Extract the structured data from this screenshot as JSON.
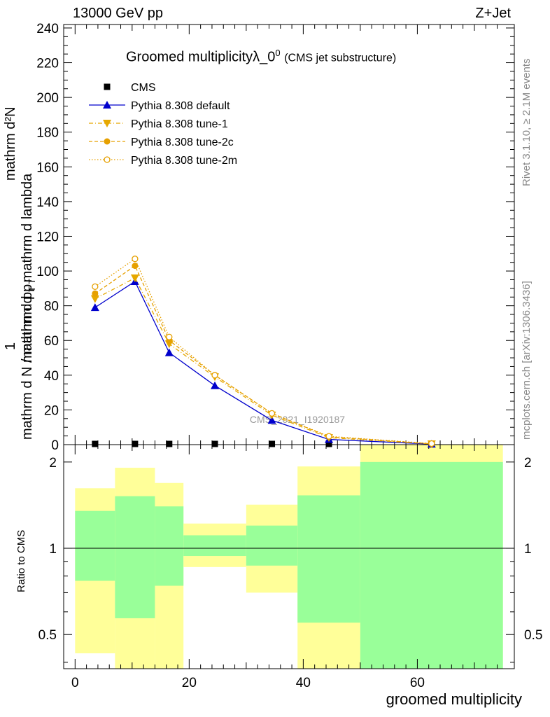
{
  "header": {
    "left": "13000 GeV pp",
    "right": "Z+Jet"
  },
  "side_labels": {
    "rivet": "Rivet 3.1.10, ≥ 2.1M events",
    "mcplots": "mcplots.cern.ch [arXiv:1306.3436]"
  },
  "chart_data": [
    {
      "type": "line",
      "title": "Groomed multiplicityλ_0",
      "title_sup": "0",
      "subtitle": "(CMS jet substructure)",
      "ylabel_top": "mathrm d²N",
      "ylabel_mid": "mathrm d p",
      "ylabel_sub": "T",
      "ylabel_tail": "mathrm d lambda",
      "ylabel_one": "1",
      "ylabel_bottom": "mathrm d N / mathrm d p",
      "ylabel_bottom_sub": "T",
      "ylim": [
        0,
        242
      ],
      "xlim": [
        -2,
        77
      ],
      "y_ticks": [
        0,
        20,
        40,
        60,
        80,
        100,
        120,
        140,
        160,
        180,
        200,
        220,
        240
      ],
      "watermark": "CMS_2021_I1920187",
      "legend": {
        "placement": "top-left"
      },
      "series": [
        {
          "name": "CMS",
          "color": "#000000",
          "marker": "square",
          "style": "none",
          "x": [
            3.5,
            10.5,
            16.5,
            24.5,
            34.5,
            44.5,
            62.5
          ],
          "y": [
            0.2,
            0.2,
            0.2,
            0.2,
            0.2,
            0.2,
            0.2
          ],
          "bins": [
            [
              0,
              7
            ],
            [
              7,
              14
            ],
            [
              14,
              19
            ],
            [
              19,
              30
            ],
            [
              30,
              39
            ],
            [
              39,
              50
            ],
            [
              50,
              75
            ]
          ]
        },
        {
          "name": "Pythia 8.308 default",
          "color": "#0000cc",
          "marker": "triangle-up",
          "style": "solid",
          "x": [
            3.5,
            10.5,
            16.5,
            24.5,
            34.5,
            44.5,
            62.5
          ],
          "y": [
            79,
            94,
            53,
            34,
            14,
            3,
            0.3
          ]
        },
        {
          "name": "Pythia 8.308 tune-1",
          "color": "#e6a800",
          "marker": "triangle-down",
          "style": "dashdot",
          "x": [
            3.5,
            10.5,
            16.5,
            24.5,
            34.5,
            44.5,
            62.5
          ],
          "y": [
            84,
            96,
            58,
            39,
            17,
            4,
            0.4
          ]
        },
        {
          "name": "Pythia 8.308 tune-2c",
          "color": "#e6a000",
          "marker": "circle-filled",
          "style": "dashed",
          "x": [
            3.5,
            10.5,
            16.5,
            24.5,
            34.5,
            44.5,
            62.5
          ],
          "y": [
            87,
            103,
            60,
            40,
            18,
            4.5,
            0.5
          ]
        },
        {
          "name": "Pythia 8.308 tune-2m",
          "color": "#e6a000",
          "marker": "circle-open",
          "style": "dotted",
          "x": [
            3.5,
            10.5,
            16.5,
            24.5,
            34.5,
            44.5,
            62.5
          ],
          "y": [
            91,
            107,
            62,
            40,
            18,
            4.8,
            0.6
          ]
        }
      ]
    },
    {
      "type": "area",
      "ylabel": "Ratio to CMS",
      "xlabel": "groomed multiplicity",
      "ylim": [
        0.38,
        2.3
      ],
      "xlim": [
        -2,
        77
      ],
      "x_ticks": [
        0,
        20,
        40,
        60
      ],
      "y_ticks": [
        0.5,
        1,
        2
      ],
      "y_scale": "log",
      "bands": [
        {
          "xmin": 0,
          "xmax": 7,
          "green": [
            0.77,
            1.35
          ],
          "yellow": [
            0.43,
            1.62
          ]
        },
        {
          "xmin": 7,
          "xmax": 14,
          "green": [
            0.57,
            1.52
          ],
          "yellow": [
            0.38,
            1.91
          ]
        },
        {
          "xmin": 14,
          "xmax": 19,
          "green": [
            0.74,
            1.4
          ],
          "yellow": [
            0.38,
            1.69
          ]
        },
        {
          "xmin": 19,
          "xmax": 30,
          "green": [
            0.94,
            1.11
          ],
          "yellow": [
            0.86,
            1.22
          ]
        },
        {
          "xmin": 30,
          "xmax": 39,
          "green": [
            0.87,
            1.2
          ],
          "yellow": [
            0.7,
            1.42
          ]
        },
        {
          "xmin": 39,
          "xmax": 50,
          "green": [
            0.55,
            1.53
          ],
          "yellow": [
            0.38,
            1.93
          ]
        },
        {
          "xmin": 50,
          "xmax": 75,
          "green": [
            0.38,
            2.0
          ],
          "yellow": [
            0.38,
            2.3
          ]
        }
      ],
      "colors": {
        "green": "#99ff99",
        "yellow": "#ffff99"
      }
    }
  ]
}
